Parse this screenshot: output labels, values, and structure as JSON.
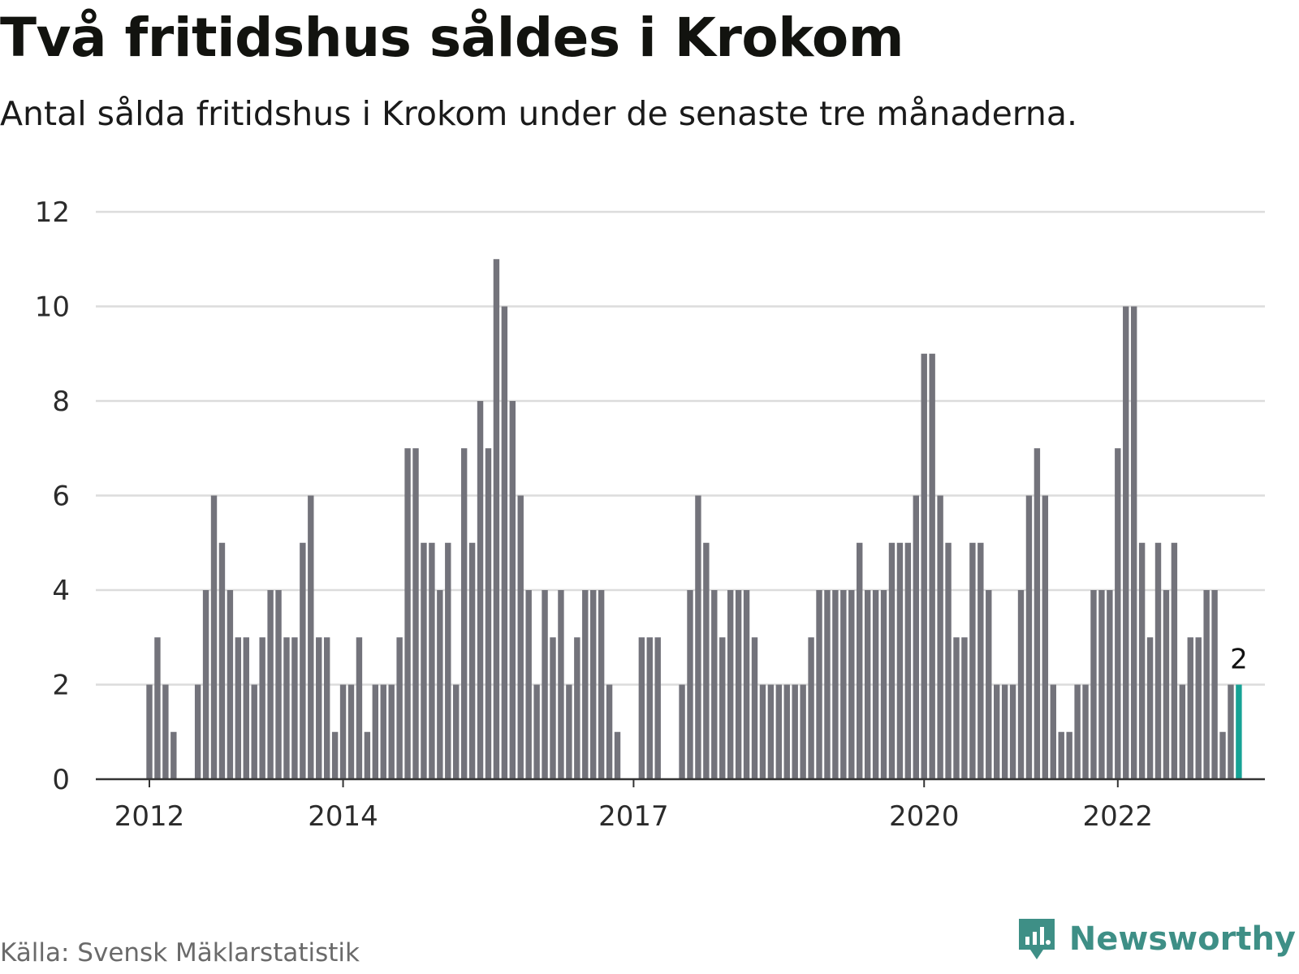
{
  "header": {
    "title": "Två fritidshus såldes i Krokom",
    "subtitle": "Antal sålda fritidshus i Krokom under de senaste tre månaderna."
  },
  "footer": {
    "source": "Källa: Svensk Mäklarstatistik",
    "brand": "Newsworthy",
    "brand_icon": "newsworthy-logo-icon"
  },
  "colors": {
    "bar": "#73737b",
    "highlight": "#16a295",
    "grid": "#dcdcdc",
    "axis": "#333333",
    "brand": "#3e8f86"
  },
  "chart_data": {
    "type": "bar",
    "x_start": "2012-01",
    "x_unit": "month",
    "values": [
      2,
      3,
      2,
      1,
      0,
      0,
      2,
      4,
      6,
      5,
      4,
      3,
      3,
      2,
      3,
      4,
      4,
      3,
      3,
      5,
      6,
      3,
      3,
      1,
      2,
      2,
      3,
      1,
      2,
      2,
      2,
      3,
      7,
      7,
      5,
      5,
      4,
      5,
      2,
      7,
      5,
      8,
      7,
      11,
      10,
      8,
      6,
      4,
      2,
      4,
      3,
      4,
      2,
      3,
      4,
      4,
      4,
      2,
      1,
      0,
      0,
      3,
      3,
      3,
      0,
      0,
      2,
      4,
      6,
      5,
      4,
      3,
      4,
      4,
      4,
      3,
      2,
      2,
      2,
      2,
      2,
      2,
      3,
      4,
      4,
      4,
      4,
      4,
      5,
      4,
      4,
      4,
      5,
      5,
      5,
      6,
      9,
      9,
      6,
      5,
      3,
      3,
      5,
      5,
      4,
      2,
      2,
      2,
      4,
      6,
      7,
      6,
      2,
      1,
      1,
      2,
      2,
      4,
      4,
      4,
      7,
      10,
      10,
      5,
      3,
      5,
      4,
      5,
      2,
      3,
      3,
      4,
      4,
      1,
      2,
      2
    ],
    "highlight_last": true,
    "x_ticks": [
      "2012",
      "2014",
      "2017",
      "2020",
      "2022"
    ],
    "y_ticks": [
      0,
      2,
      4,
      6,
      8,
      10,
      12
    ],
    "ylim": [
      0,
      12
    ],
    "last_value_label": "2",
    "grid": true,
    "legend": "none"
  }
}
